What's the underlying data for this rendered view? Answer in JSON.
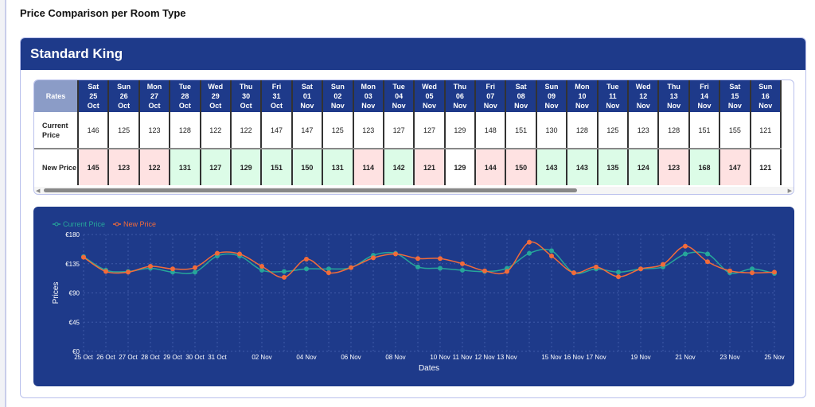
{
  "page": {
    "title": "Price Comparison per Room Type"
  },
  "card": {
    "title": "Standard King"
  },
  "table": {
    "corner": "Rates",
    "row_labels": [
      "Current Price",
      "New Price"
    ],
    "columns": [
      {
        "day": "Sat",
        "date": "25",
        "month": "Oct",
        "current": "146",
        "new": "145",
        "status": "lower"
      },
      {
        "day": "Sun",
        "date": "26",
        "month": "Oct",
        "current": "125",
        "new": "123",
        "status": "lower"
      },
      {
        "day": "Mon",
        "date": "27",
        "month": "Oct",
        "current": "123",
        "new": "122",
        "status": "lower"
      },
      {
        "day": "Tue",
        "date": "28",
        "month": "Oct",
        "current": "128",
        "new": "131",
        "status": "higher"
      },
      {
        "day": "Wed",
        "date": "29",
        "month": "Oct",
        "current": "122",
        "new": "127",
        "status": "higher"
      },
      {
        "day": "Thu",
        "date": "30",
        "month": "Oct",
        "current": "122",
        "new": "129",
        "status": "higher"
      },
      {
        "day": "Fri",
        "date": "31",
        "month": "Oct",
        "current": "147",
        "new": "151",
        "status": "higher"
      },
      {
        "day": "Sat",
        "date": "01",
        "month": "Nov",
        "current": "147",
        "new": "150",
        "status": "higher"
      },
      {
        "day": "Sun",
        "date": "02",
        "month": "Nov",
        "current": "125",
        "new": "131",
        "status": "higher"
      },
      {
        "day": "Mon",
        "date": "03",
        "month": "Nov",
        "current": "123",
        "new": "114",
        "status": "lower"
      },
      {
        "day": "Tue",
        "date": "04",
        "month": "Nov",
        "current": "127",
        "new": "142",
        "status": "higher"
      },
      {
        "day": "Wed",
        "date": "05",
        "month": "Nov",
        "current": "127",
        "new": "121",
        "status": "lower"
      },
      {
        "day": "Thu",
        "date": "06",
        "month": "Nov",
        "current": "129",
        "new": "129",
        "status": "same"
      },
      {
        "day": "Fri",
        "date": "07",
        "month": "Nov",
        "current": "148",
        "new": "144",
        "status": "lower"
      },
      {
        "day": "Sat",
        "date": "08",
        "month": "Nov",
        "current": "151",
        "new": "150",
        "status": "lower"
      },
      {
        "day": "Sun",
        "date": "09",
        "month": "Nov",
        "current": "130",
        "new": "143",
        "status": "higher"
      },
      {
        "day": "Mon",
        "date": "10",
        "month": "Nov",
        "current": "128",
        "new": "143",
        "status": "higher"
      },
      {
        "day": "Tue",
        "date": "11",
        "month": "Nov",
        "current": "125",
        "new": "135",
        "status": "higher"
      },
      {
        "day": "Wed",
        "date": "12",
        "month": "Nov",
        "current": "123",
        "new": "124",
        "status": "higher"
      },
      {
        "day": "Thu",
        "date": "13",
        "month": "Nov",
        "current": "128",
        "new": "123",
        "status": "lower"
      },
      {
        "day": "Fri",
        "date": "14",
        "month": "Nov",
        "current": "151",
        "new": "168",
        "status": "higher"
      },
      {
        "day": "Sat",
        "date": "15",
        "month": "Nov",
        "current": "155",
        "new": "147",
        "status": "lower"
      },
      {
        "day": "Sun",
        "date": "16",
        "month": "Nov",
        "current": "121",
        "new": "121",
        "status": "same"
      }
    ]
  },
  "colors": {
    "navy": "#1e3a8a",
    "higher": "#dcfce7",
    "lower": "#fee2e2",
    "current": "#26a69a",
    "new": "#f26b3a"
  },
  "chart_data": {
    "type": "line",
    "xlabel": "Dates",
    "ylabel": "Prices",
    "ylim": [
      0,
      180
    ],
    "y_ticks": [
      "€0",
      "€45",
      "€90",
      "€135",
      "€180"
    ],
    "y_tick_values": [
      0,
      45,
      90,
      135,
      180
    ],
    "grid": true,
    "legend": "top-left",
    "x": [
      "25 Oct",
      "26 Oct",
      "27 Oct",
      "28 Oct",
      "29 Oct",
      "30 Oct",
      "31 Oct",
      "01 Nov",
      "02 Nov",
      "03 Nov",
      "04 Nov",
      "05 Nov",
      "06 Nov",
      "07 Nov",
      "08 Nov",
      "09 Nov",
      "10 Nov",
      "11 Nov",
      "12 Nov",
      "13 Nov",
      "14 Nov",
      "15 Nov",
      "16 Nov",
      "17 Nov",
      "18 Nov",
      "19 Nov",
      "20 Nov",
      "21 Nov",
      "22 Nov",
      "23 Nov",
      "24 Nov",
      "25 Nov"
    ],
    "x_tick_labels": [
      "25 Oct",
      "26 Oct",
      "27 Oct",
      "28 Oct",
      "29 Oct",
      "30 Oct",
      "31 Oct",
      "02 Nov",
      "04 Nov",
      "06 Nov",
      "08 Nov",
      "10 Nov",
      "11 Nov",
      "12 Nov",
      "13 Nov",
      "15 Nov",
      "16 Nov",
      "17 Nov",
      "19 Nov",
      "21 Nov",
      "23 Nov",
      "25 Nov"
    ],
    "series": [
      {
        "name": "Current Price",
        "color": "#26a69a",
        "values": [
          146,
          125,
          123,
          128,
          122,
          122,
          147,
          147,
          125,
          123,
          127,
          127,
          129,
          148,
          151,
          130,
          128,
          125,
          123,
          128,
          151,
          155,
          121,
          127,
          122,
          127,
          130,
          150,
          150,
          121,
          127,
          120
        ]
      },
      {
        "name": "New Price",
        "color": "#f26b3a",
        "values": [
          145,
          123,
          122,
          131,
          127,
          129,
          151,
          150,
          131,
          114,
          142,
          121,
          129,
          144,
          150,
          143,
          143,
          135,
          124,
          123,
          168,
          147,
          121,
          130,
          115,
          127,
          134,
          162,
          138,
          124,
          121,
          122
        ]
      }
    ]
  }
}
